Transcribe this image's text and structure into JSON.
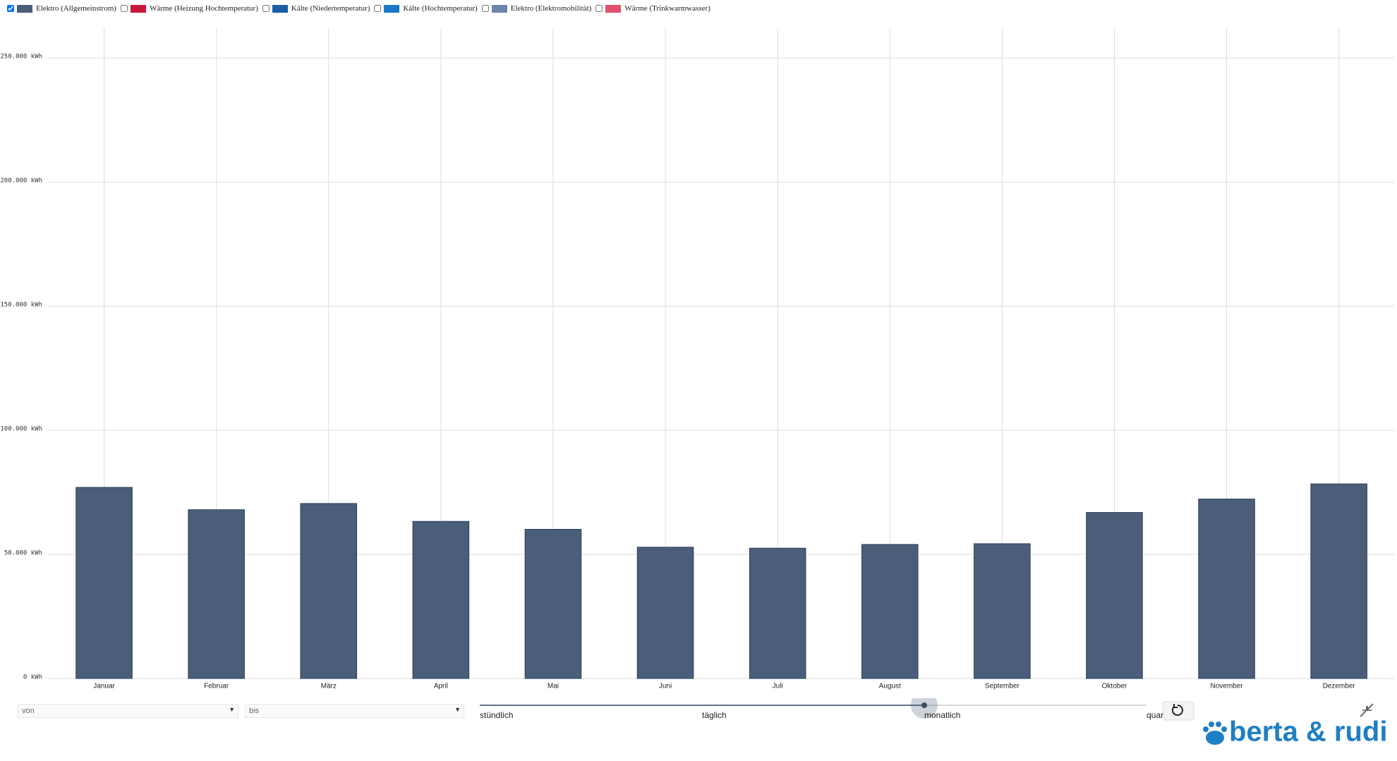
{
  "chart_data": {
    "type": "bar",
    "legend": [
      {
        "name": "Elektro (Allgemeinstrom)",
        "color": "#4a5e7a",
        "checked": true
      },
      {
        "name": "Wärme (Heizung Hochtemperatur)",
        "color": "#c8193c",
        "checked": false
      },
      {
        "name": "Kälte (Niedertemperatur)",
        "color": "#1a5ea8",
        "checked": false
      },
      {
        "name": "Kälte (Hochtemperatur)",
        "color": "#1a78c8",
        "checked": false
      },
      {
        "name": "Elektro (Elektromobilität)",
        "color": "#6b85a8",
        "checked": false
      },
      {
        "name": "Wärme (Trinkwarmwasser)",
        "color": "#e0506a",
        "checked": false
      }
    ],
    "categories": [
      "Januar",
      "Februar",
      "März",
      "April",
      "Mai",
      "Juni",
      "Juli",
      "August",
      "September",
      "Oktober",
      "November",
      "Dezember"
    ],
    "series": [
      {
        "name": "Elektro (Allgemeinstrom)",
        "color": "#4a5e7a",
        "values": [
          77000,
          68000,
          70500,
          63300,
          60100,
          52900,
          52500,
          54000,
          54300,
          66900,
          72300,
          78400
        ]
      }
    ],
    "ylim": [
      0,
      262000
    ],
    "yticks": [
      {
        "value": 0,
        "label": "0 kWh"
      },
      {
        "value": 50000,
        "label": "50.000 kWh"
      },
      {
        "value": 100000,
        "label": "100.000 kWh"
      },
      {
        "value": 150000,
        "label": "150.000 kWh"
      },
      {
        "value": 200000,
        "label": "200.000 kWh"
      },
      {
        "value": 250000,
        "label": "250.000 kWh"
      }
    ],
    "grid": true
  },
  "controls": {
    "from": "von",
    "to": "bis",
    "resolution": [
      "stündlich",
      "täglich",
      "monatlich",
      "quar"
    ],
    "selected": 2
  },
  "logo": "berta & rudi"
}
